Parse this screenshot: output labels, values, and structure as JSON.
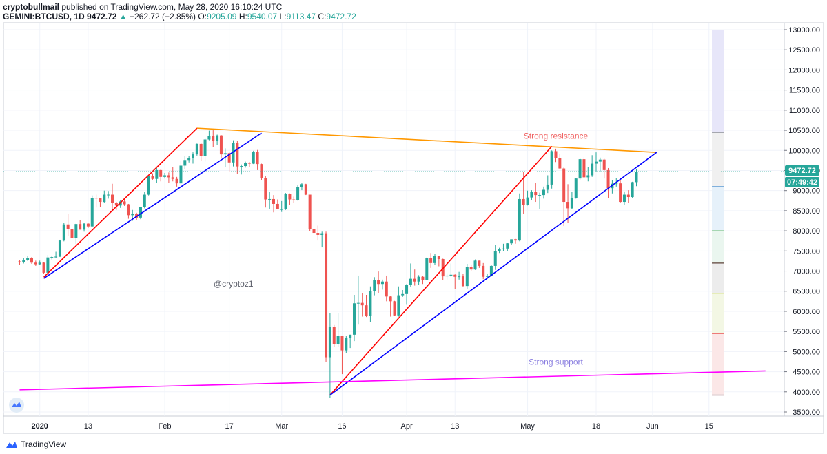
{
  "header": {
    "author": "cryptobullmail",
    "published_text": "published on TradingView.com, May 28, 2020 16:10:24 UTC",
    "symbol": "GEMINI:BTCUSD, 1D",
    "last": "9472.72",
    "change_arrow": "▲",
    "change": "+262.72 (+2.85%)",
    "o_label": "O:",
    "o_value": "9205.09",
    "h_label": "H:",
    "h_value": "9540.07",
    "l_label": "L:",
    "l_value": "9113.47",
    "c_label": "C:",
    "c_value": "9472.72"
  },
  "price_badge": "9472.72",
  "countdown_badge": "07:49:42",
  "watermark": "@cryptoz1",
  "footer": {
    "brand": "TradingView"
  },
  "colors": {
    "up": "#26a69a",
    "down": "#ef5350",
    "red_line": "#ff0000",
    "blue_line": "#0000ff",
    "orange_line": "#ff9800",
    "magenta_line": "#ff00ff",
    "grid": "#f0f3fa",
    "badge": "#26a69a"
  },
  "chart_data": {
    "type": "candlestick",
    "y_ticks": [
      "3500.00",
      "4000.00",
      "4500.00",
      "5000.00",
      "5500.00",
      "6000.00",
      "6500.00",
      "7000.00",
      "7500.00",
      "8000.00",
      "8500.00",
      "9000.00",
      "9500.00",
      "10000.00",
      "10500.00",
      "11000.00",
      "11500.00",
      "12000.00",
      "12500.00",
      "13000.00"
    ],
    "ylim": [
      3300,
      13100
    ],
    "x_ticks": [
      {
        "label": "2020",
        "date": "2020-01-01",
        "bold": true
      },
      {
        "label": "13",
        "date": "2020-01-13"
      },
      {
        "label": "Feb",
        "date": "2020-02-01"
      },
      {
        "label": "17",
        "date": "2020-02-17"
      },
      {
        "label": "Mar",
        "date": "2020-03-01"
      },
      {
        "label": "16",
        "date": "2020-03-16"
      },
      {
        "label": "Apr",
        "date": "2020-04-01"
      },
      {
        "label": "13",
        "date": "2020-04-13"
      },
      {
        "label": "May",
        "date": "2020-05-01"
      },
      {
        "label": "18",
        "date": "2020-05-18"
      },
      {
        "label": "Jun",
        "date": "2020-06-01"
      },
      {
        "label": "15",
        "date": "2020-06-15"
      }
    ],
    "candles": [
      [
        "2019-12-27",
        7240,
        7280,
        7150,
        7220
      ],
      [
        "2019-12-28",
        7220,
        7320,
        7190,
        7280
      ],
      [
        "2019-12-29",
        7280,
        7380,
        7250,
        7320
      ],
      [
        "2019-12-30",
        7320,
        7350,
        7180,
        7210
      ],
      [
        "2019-12-31",
        7210,
        7260,
        7130,
        7170
      ],
      [
        "2020-01-01",
        7170,
        7260,
        7150,
        7210
      ],
      [
        "2020-01-02",
        7210,
        7220,
        6930,
        6960
      ],
      [
        "2020-01-03",
        6960,
        7400,
        6880,
        7340
      ],
      [
        "2020-01-04",
        7340,
        7380,
        7290,
        7350
      ],
      [
        "2020-01-05",
        7350,
        7480,
        7330,
        7360
      ],
      [
        "2020-01-06",
        7360,
        7780,
        7350,
        7760
      ],
      [
        "2020-01-07",
        7760,
        8200,
        7740,
        8160
      ],
      [
        "2020-01-08",
        8160,
        8430,
        7870,
        8040
      ],
      [
        "2020-01-09",
        8040,
        8050,
        7780,
        7820
      ],
      [
        "2020-01-10",
        7820,
        8180,
        7680,
        8170
      ],
      [
        "2020-01-11",
        8170,
        8270,
        8030,
        8030
      ],
      [
        "2020-01-12",
        8030,
        8190,
        7980,
        8180
      ],
      [
        "2020-01-13",
        8180,
        8190,
        8070,
        8110
      ],
      [
        "2020-01-14",
        8110,
        8880,
        8100,
        8820
      ],
      [
        "2020-01-15",
        8820,
        8900,
        8580,
        8810
      ],
      [
        "2020-01-16",
        8810,
        8820,
        8600,
        8720
      ],
      [
        "2020-01-17",
        8720,
        9000,
        8700,
        8900
      ],
      [
        "2020-01-18",
        8900,
        8990,
        8800,
        8900
      ],
      [
        "2020-01-19",
        8900,
        9170,
        8480,
        8700
      ],
      [
        "2020-01-20",
        8700,
        8720,
        8520,
        8630
      ],
      [
        "2020-01-21",
        8630,
        8770,
        8570,
        8730
      ],
      [
        "2020-01-22",
        8730,
        8790,
        8620,
        8660
      ],
      [
        "2020-01-23",
        8660,
        8670,
        8300,
        8390
      ],
      [
        "2020-01-24",
        8390,
        8520,
        8250,
        8430
      ],
      [
        "2020-01-25",
        8430,
        8450,
        8270,
        8330
      ],
      [
        "2020-01-26",
        8330,
        8600,
        8290,
        8590
      ],
      [
        "2020-01-27",
        8590,
        8970,
        8560,
        8900
      ],
      [
        "2020-01-28",
        8900,
        9380,
        8880,
        9370
      ],
      [
        "2020-01-29",
        9370,
        9430,
        9270,
        9290
      ],
      [
        "2020-01-30",
        9290,
        9560,
        9190,
        9510
      ],
      [
        "2020-01-31",
        9510,
        9520,
        9230,
        9340
      ],
      [
        "2020-02-01",
        9340,
        9440,
        9300,
        9380
      ],
      [
        "2020-02-02",
        9380,
        9450,
        9200,
        9330
      ],
      [
        "2020-02-03",
        9330,
        9590,
        9230,
        9290
      ],
      [
        "2020-02-04",
        9290,
        9340,
        9100,
        9180
      ],
      [
        "2020-02-05",
        9180,
        9740,
        9170,
        9620
      ],
      [
        "2020-02-06",
        9620,
        9850,
        9540,
        9760
      ],
      [
        "2020-02-07",
        9760,
        9860,
        9700,
        9800
      ],
      [
        "2020-02-08",
        9800,
        9950,
        9670,
        9900
      ],
      [
        "2020-02-09",
        9900,
        10170,
        9870,
        10160
      ],
      [
        "2020-02-10",
        10160,
        10180,
        9740,
        9860
      ],
      [
        "2020-02-11",
        9860,
        10300,
        9720,
        10270
      ],
      [
        "2020-02-12",
        10270,
        10490,
        10250,
        10360
      ],
      [
        "2020-02-13",
        10360,
        10500,
        10090,
        10240
      ],
      [
        "2020-02-14",
        10240,
        10390,
        10140,
        10370
      ],
      [
        "2020-02-15",
        10370,
        10380,
        9800,
        9900
      ],
      [
        "2020-02-16",
        9900,
        10050,
        9580,
        9930
      ],
      [
        "2020-02-17",
        9930,
        9960,
        9470,
        9700
      ],
      [
        "2020-02-18",
        9700,
        10250,
        9600,
        10180
      ],
      [
        "2020-02-19",
        10180,
        10230,
        9420,
        9600
      ],
      [
        "2020-02-20",
        9600,
        9650,
        9400,
        9610
      ],
      [
        "2020-02-21",
        9610,
        9720,
        9570,
        9690
      ],
      [
        "2020-02-22",
        9690,
        9710,
        9590,
        9670
      ],
      [
        "2020-02-23",
        9670,
        9990,
        9660,
        9960
      ],
      [
        "2020-02-24",
        9960,
        10010,
        9510,
        9660
      ],
      [
        "2020-02-25",
        9660,
        9670,
        9260,
        9310
      ],
      [
        "2020-02-26",
        9310,
        9370,
        8580,
        8780
      ],
      [
        "2020-02-27",
        8780,
        8970,
        8550,
        8790
      ],
      [
        "2020-02-28",
        8790,
        8890,
        8460,
        8670
      ],
      [
        "2020-02-29",
        8670,
        8780,
        8540,
        8540
      ],
      [
        "2020-03-01",
        8540,
        8740,
        8470,
        8540
      ],
      [
        "2020-03-02",
        8540,
        8940,
        8520,
        8920
      ],
      [
        "2020-03-03",
        8920,
        8930,
        8650,
        8780
      ],
      [
        "2020-03-04",
        8780,
        8850,
        8690,
        8760
      ],
      [
        "2020-03-05",
        8760,
        9130,
        8750,
        9080
      ],
      [
        "2020-03-06",
        9080,
        9190,
        9010,
        9160
      ],
      [
        "2020-03-07",
        9160,
        9170,
        8890,
        8900
      ],
      [
        "2020-03-08",
        8900,
        8900,
        8000,
        8040
      ],
      [
        "2020-03-09",
        8040,
        8140,
        7650,
        7950
      ],
      [
        "2020-03-10",
        7950,
        8130,
        7760,
        7900
      ],
      [
        "2020-03-11",
        7900,
        7980,
        7590,
        7940
      ],
      [
        "2020-03-12",
        7940,
        7980,
        4740,
        4860
      ],
      [
        "2020-03-13",
        4860,
        5960,
        3850,
        5620
      ],
      [
        "2020-03-14",
        5620,
        5660,
        5120,
        5180
      ],
      [
        "2020-03-15",
        5180,
        5950,
        5110,
        5390
      ],
      [
        "2020-03-16",
        5390,
        5400,
        4440,
        5030
      ],
      [
        "2020-03-17",
        5030,
        5400,
        4960,
        5340
      ],
      [
        "2020-03-18",
        5340,
        5420,
        5090,
        5420
      ],
      [
        "2020-03-19",
        5420,
        6410,
        5260,
        6200
      ],
      [
        "2020-03-20",
        6200,
        6890,
        5670,
        6210
      ],
      [
        "2020-03-21",
        6210,
        6450,
        5870,
        6150
      ],
      [
        "2020-03-22",
        6150,
        6410,
        5860,
        5880
      ],
      [
        "2020-03-23",
        5880,
        6620,
        5730,
        6500
      ],
      [
        "2020-03-24",
        6500,
        6850,
        6400,
        6780
      ],
      [
        "2020-03-25",
        6780,
        6990,
        6460,
        6680
      ],
      [
        "2020-03-26",
        6680,
        6790,
        6540,
        6740
      ],
      [
        "2020-03-27",
        6740,
        6890,
        6250,
        6370
      ],
      [
        "2020-03-28",
        6370,
        6380,
        5870,
        6250
      ],
      [
        "2020-03-29",
        6250,
        6260,
        5880,
        5900
      ],
      [
        "2020-03-30",
        5900,
        6620,
        5870,
        6400
      ],
      [
        "2020-03-31",
        6400,
        6530,
        6360,
        6430
      ],
      [
        "2020-04-01",
        6430,
        6680,
        6180,
        6650
      ],
      [
        "2020-04-02",
        6650,
        7190,
        6610,
        6810
      ],
      [
        "2020-04-03",
        6810,
        7040,
        6640,
        6740
      ],
      [
        "2020-04-04",
        6740,
        6900,
        6660,
        6860
      ],
      [
        "2020-04-05",
        6860,
        6880,
        6680,
        6780
      ],
      [
        "2020-04-06",
        6780,
        7340,
        6770,
        7330
      ],
      [
        "2020-04-07",
        7330,
        7450,
        7080,
        7200
      ],
      [
        "2020-04-08",
        7200,
        7420,
        7160,
        7370
      ],
      [
        "2020-04-09",
        7370,
        7380,
        7120,
        7300
      ],
      [
        "2020-04-10",
        7300,
        7310,
        6780,
        6870
      ],
      [
        "2020-04-11",
        6870,
        6950,
        6790,
        6890
      ],
      [
        "2020-04-12",
        6890,
        7190,
        6860,
        6910
      ],
      [
        "2020-04-13",
        6910,
        6920,
        6560,
        6860
      ],
      [
        "2020-04-14",
        6860,
        6980,
        6790,
        6870
      ],
      [
        "2020-04-15",
        6870,
        6930,
        6610,
        6630
      ],
      [
        "2020-04-16",
        6630,
        7180,
        6560,
        7100
      ],
      [
        "2020-04-17",
        7100,
        7150,
        7000,
        7040
      ],
      [
        "2020-04-18",
        7040,
        7290,
        7030,
        7260
      ],
      [
        "2020-04-19",
        7260,
        7260,
        7080,
        7130
      ],
      [
        "2020-04-20",
        7130,
        7200,
        6800,
        6860
      ],
      [
        "2020-04-21",
        6860,
        6940,
        6810,
        6880
      ],
      [
        "2020-04-22",
        6880,
        7150,
        6870,
        7130
      ],
      [
        "2020-04-23",
        7130,
        7650,
        7030,
        7500
      ],
      [
        "2020-04-24",
        7500,
        7580,
        7450,
        7550
      ],
      [
        "2020-04-25",
        7550,
        7680,
        7490,
        7560
      ],
      [
        "2020-04-26",
        7560,
        7710,
        7500,
        7690
      ],
      [
        "2020-04-27",
        7690,
        7790,
        7650,
        7790
      ],
      [
        "2020-04-28",
        7790,
        7800,
        7680,
        7760
      ],
      [
        "2020-04-29",
        7760,
        8930,
        7740,
        8790
      ],
      [
        "2020-04-30",
        8790,
        9460,
        8420,
        8640
      ],
      [
        "2020-05-01",
        8640,
        9000,
        8630,
        8830
      ],
      [
        "2020-05-02",
        8830,
        9010,
        8770,
        8970
      ],
      [
        "2020-05-03",
        8970,
        9190,
        8720,
        8890
      ],
      [
        "2020-05-04",
        8890,
        8950,
        8550,
        8890
      ],
      [
        "2020-05-05",
        8890,
        9100,
        8800,
        9020
      ],
      [
        "2020-05-06",
        9020,
        9380,
        8940,
        9150
      ],
      [
        "2020-05-07",
        9150,
        10000,
        9050,
        9980
      ],
      [
        "2020-05-08",
        9980,
        10040,
        9710,
        9810
      ],
      [
        "2020-05-09",
        9810,
        9920,
        9530,
        9550
      ],
      [
        "2020-05-10",
        9550,
        9570,
        8120,
        8720
      ],
      [
        "2020-05-11",
        8720,
        9160,
        8200,
        8560
      ],
      [
        "2020-05-12",
        8560,
        8970,
        8540,
        8810
      ],
      [
        "2020-05-13",
        8810,
        9320,
        8800,
        9300
      ],
      [
        "2020-05-14",
        9300,
        9800,
        9260,
        9780
      ],
      [
        "2020-05-15",
        9780,
        9830,
        9320,
        9330
      ],
      [
        "2020-05-16",
        9330,
        9580,
        9230,
        9380
      ],
      [
        "2020-05-17",
        9380,
        9880,
        9340,
        9670
      ],
      [
        "2020-05-18",
        9670,
        9950,
        9460,
        9720
      ],
      [
        "2020-05-19",
        9720,
        9820,
        9470,
        9770
      ],
      [
        "2020-05-20",
        9770,
        9790,
        9300,
        9510
      ],
      [
        "2020-05-21",
        9510,
        9560,
        8810,
        9060
      ],
      [
        "2020-05-22",
        9060,
        9260,
        8930,
        9170
      ],
      [
        "2020-05-23",
        9170,
        9310,
        9100,
        9180
      ],
      [
        "2020-05-24",
        9180,
        9300,
        8700,
        8720
      ],
      [
        "2020-05-25",
        8720,
        8980,
        8640,
        8900
      ],
      [
        "2020-05-26",
        8900,
        9010,
        8700,
        8840
      ],
      [
        "2020-05-27",
        8840,
        9220,
        8820,
        9210
      ],
      [
        "2020-05-28",
        9210,
        9540,
        9110,
        9470
      ]
    ],
    "trendlines": [
      {
        "color": "red",
        "from": [
          "2020-01-02",
          6850
        ],
        "to": [
          "2020-02-09",
          10550
        ]
      },
      {
        "color": "blue",
        "from": [
          "2020-01-02",
          6820
        ],
        "to": [
          "2020-02-25",
          10430
        ]
      },
      {
        "color": "orange",
        "from": [
          "2020-02-09",
          10550
        ],
        "to": [
          "2020-06-02",
          9950
        ]
      },
      {
        "color": "red",
        "from": [
          "2020-03-13",
          3920
        ],
        "to": [
          "2020-05-07",
          10100
        ]
      },
      {
        "color": "blue",
        "from": [
          "2020-03-13",
          3920
        ],
        "to": [
          "2020-06-02",
          9950
        ]
      },
      {
        "color": "magenta",
        "from": [
          "2019-12-27",
          4050
        ],
        "to": [
          "2020-06-29",
          4520
        ]
      }
    ],
    "annotations": [
      {
        "text": "Strong resistance",
        "date": "2020-05-08",
        "price": 10290,
        "color": "#f06060"
      },
      {
        "text": "Strong support",
        "date": "2020-05-08",
        "price": 4670,
        "color": "#8b7fe0"
      }
    ],
    "last_price": 9472.72,
    "price_line": 9472.72
  }
}
